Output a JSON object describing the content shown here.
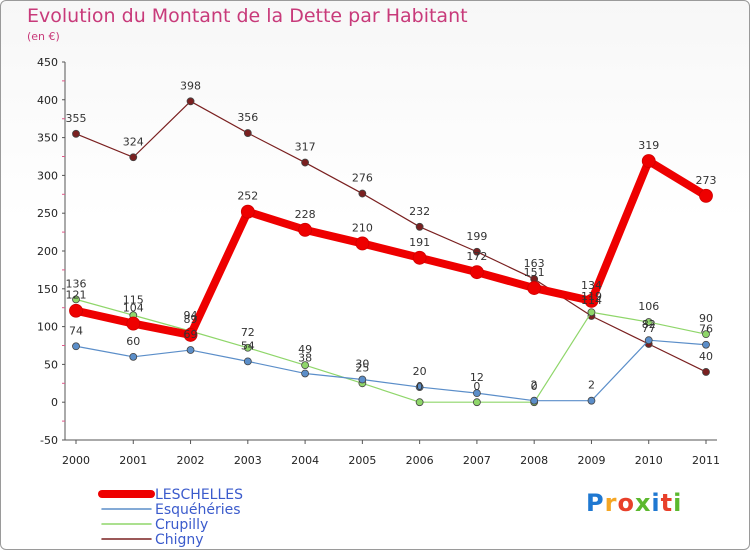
{
  "header": {
    "title": "Evolution du Montant de la Dette par Habitant",
    "subtitle": "(en €)"
  },
  "logo": {
    "text": "Proxiti",
    "colors": [
      "#1f78d1",
      "#f5a623",
      "#e8402a",
      "#5cb82e",
      "#1f78d1",
      "#e8402a",
      "#5cb82e"
    ]
  },
  "chart_data": {
    "type": "line",
    "x": [
      "2000",
      "2001",
      "2002",
      "2003",
      "2004",
      "2005",
      "2006",
      "2007",
      "2008",
      "2009",
      "2010",
      "2011"
    ],
    "ylim": [
      -50,
      450
    ],
    "yticks": [
      "-50",
      "0",
      "50",
      "100",
      "150",
      "200",
      "250",
      "300",
      "350",
      "400",
      "450"
    ],
    "grid": false,
    "legend_position": "bottom-left",
    "series": [
      {
        "name": "Chigny",
        "color": "#7a2020",
        "width": 1.2,
        "marker": 3.5,
        "values": [
          355,
          324,
          398,
          356,
          317,
          276,
          232,
          199,
          163,
          114,
          77,
          40
        ],
        "labels": [
          "355",
          "324",
          "398",
          "356",
          "317",
          "276",
          "232",
          "199",
          "163",
          "114",
          "77",
          "40"
        ]
      },
      {
        "name": "Crupilly",
        "color": "#8fd66a",
        "width": 1.2,
        "marker": 3.5,
        "values": [
          136,
          115,
          94,
          72,
          49,
          25,
          0,
          0,
          0,
          119,
          106,
          90
        ],
        "labels": [
          "136",
          "115",
          "94",
          "72",
          "49",
          "25",
          "0",
          "0",
          "0",
          "119",
          "106",
          "90"
        ]
      },
      {
        "name": "Esquéhéries",
        "color": "#5b8ec9",
        "width": 1.2,
        "marker": 3.5,
        "values": [
          74,
          60,
          69,
          54,
          38,
          30,
          20,
          12,
          2,
          2,
          82,
          76
        ],
        "labels": [
          "74",
          "60",
          "69",
          "54",
          "38",
          "30",
          "20",
          "12",
          "2",
          "2",
          "82",
          "76"
        ]
      },
      {
        "name": "LESCHELLES",
        "color": "#ee0000",
        "width": 8,
        "marker": 6.5,
        "values": [
          121,
          104,
          89,
          252,
          228,
          210,
          191,
          172,
          151,
          134,
          319,
          273
        ],
        "labels": [
          "121",
          "104",
          "89",
          "252",
          "228",
          "210",
          "191",
          "172",
          "151",
          "134",
          "319",
          "273"
        ]
      }
    ],
    "legend": [
      {
        "name": "LESCHELLES",
        "color": "#ee0000",
        "width": 8
      },
      {
        "name": "Esquéhéries",
        "color": "#5b8ec9",
        "width": 1.5
      },
      {
        "name": "Crupilly",
        "color": "#8fd66a",
        "width": 1.5
      },
      {
        "name": "Chigny",
        "color": "#7a2020",
        "width": 1.5
      }
    ]
  }
}
